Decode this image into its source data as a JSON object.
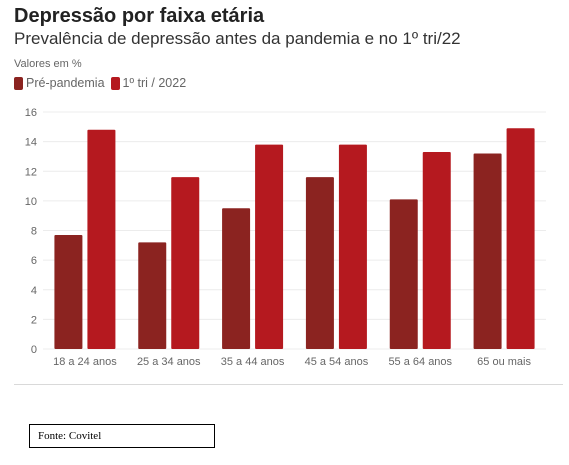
{
  "title": "Depressão por faixa etária",
  "subtitle": "Prevalência de depressão antes da pandemia e no 1º tri/22",
  "units_note": "Valores em %",
  "source": "Fonte: Covitel",
  "colors": {
    "pre_pandemia": "#8b2320",
    "tri_2022": "#b5191f"
  },
  "chart_data": {
    "type": "bar",
    "title": "Depressão por faixa etária",
    "subtitle": "Prevalência de depressão antes da pandemia e no 1º tri/22",
    "ylabel": "Valores em %",
    "categories": [
      "18 a 24 anos",
      "25 a 34 anos",
      "35 a 44 anos",
      "45 a 54 anos",
      "55 a 64 anos",
      "65 ou mais"
    ],
    "series": [
      {
        "name": "Pré-pandemia",
        "values": [
          7.7,
          7.2,
          9.5,
          11.6,
          10.1,
          13.2
        ]
      },
      {
        "name": "1º tri / 2022",
        "values": [
          14.8,
          11.6,
          13.8,
          13.8,
          13.3,
          14.9
        ]
      }
    ],
    "ylim": [
      0,
      16
    ],
    "yticks": [
      0,
      2,
      4,
      6,
      8,
      10,
      12,
      14,
      16
    ],
    "grid": true,
    "legend": "top-left"
  }
}
